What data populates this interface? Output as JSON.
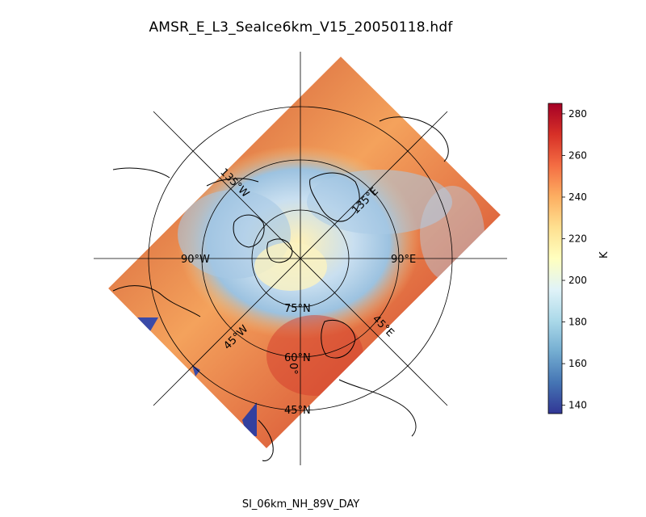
{
  "title": "AMSR_E_L3_SeaIce6km_V15_20050118.hdf",
  "subtitle": "SI_06km_NH_89V_DAY",
  "map": {
    "projection": "north-polar-stereographic",
    "grid_labels": {
      "lon_135W": "135°W",
      "lon_135E": "135°E",
      "lon_90W": "90°W",
      "lon_90E": "90°E",
      "lon_45W": "45°W",
      "lon_45E": "45°E",
      "lon_0": "0°",
      "lat_75N": "75°N",
      "lat_60N": "60°N",
      "lat_45N": "45°N"
    }
  },
  "colorbar": {
    "unit": "K",
    "colormap": "RdYlBu_r",
    "min": 136,
    "max": 285,
    "ticks": [
      "140",
      "160",
      "180",
      "200",
      "220",
      "240",
      "260",
      "280"
    ],
    "tick_values": [
      140,
      160,
      180,
      200,
      220,
      240,
      260,
      280
    ]
  }
}
